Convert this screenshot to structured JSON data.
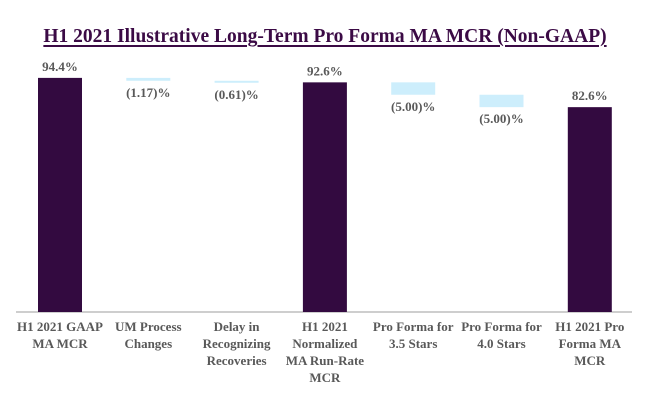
{
  "title": "H1 2021 Illustrative Long-Term Pro Forma MA MCR (Non-GAAP)",
  "chart_data": {
    "type": "bar",
    "subtype": "waterfall",
    "title": "H1 2021 Illustrative Long-Term Pro Forma MA MCR (Non-GAAP)",
    "categories": [
      "H1 2021 GAAP MA MCR",
      "UM Process Changes",
      "Delay in Recognizing Recoveries",
      "H1 2021 Normalized MA Run-Rate MCR",
      "Pro Forma for 3.5 Stars",
      "Pro Forma for 4.0 Stars",
      "H1 2021 Pro Forma MA MCR"
    ],
    "values": [
      94.4,
      -1.17,
      -0.61,
      92.6,
      -5.0,
      -5.0,
      82.6
    ],
    "kinds": [
      "total",
      "delta",
      "delta",
      "total",
      "delta",
      "delta",
      "total"
    ],
    "data_labels": [
      "94.4%",
      "(1.17)%",
      "(0.61)%",
      "92.6%",
      "(5.00)%",
      "(5.00)%",
      "82.6%"
    ],
    "ylim": [
      0,
      100
    ],
    "grid": false,
    "colors": {
      "total": "#330a40",
      "delta": "#cdeefc",
      "label": "#595959",
      "title": "#3b0a45"
    }
  }
}
